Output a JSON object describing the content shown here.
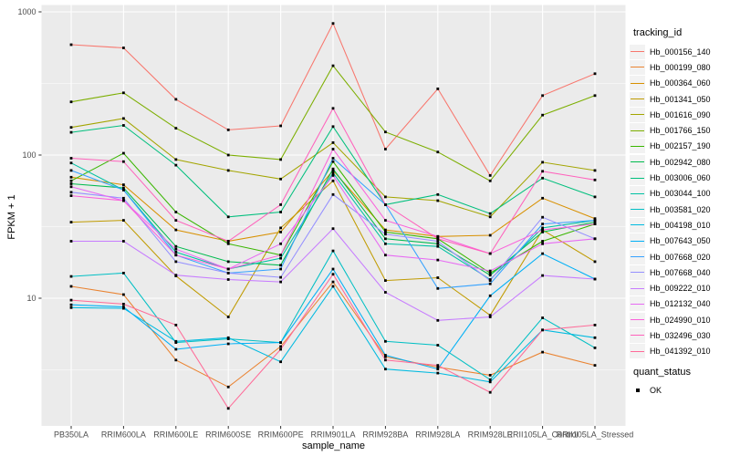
{
  "figure": {
    "background": "#FFFFFF",
    "panel_bg": "#EBEBEB",
    "grid_color": "#FFFFFF",
    "tick_color": "#333333",
    "tick_label_color": "#4D4D4D",
    "point_color": "#000000"
  },
  "axes": {
    "x_title": "sample_name",
    "y_title": "FPKM + 1",
    "y_tick_labels": [
      "1000",
      "100",
      "10"
    ],
    "y_tick_values": [
      1000,
      100,
      10
    ]
  },
  "legend": {
    "tracking_title": "tracking_id",
    "quant_title": "quant_status",
    "quant_items": [
      {
        "label": "OK"
      }
    ]
  },
  "chart_data": {
    "type": "line",
    "title": "",
    "xlabel": "sample_name",
    "ylabel": "FPKM + 1",
    "y_scale": "log10",
    "ylim": [
      1.28,
      1110
    ],
    "y_major_ticks": [
      10,
      100,
      1000
    ],
    "y_minor_ticks": [
      3.162,
      31.62,
      316.2
    ],
    "grid": true,
    "legend_position": "right",
    "point_shape": "filled-square",
    "categories": [
      "PB350LA",
      "RRIM600LA",
      "RRIM600LE",
      "RRIM600SE",
      "RRIM600PE",
      "RRIM901LA",
      "RRIM928BA",
      "RRIM928LA",
      "RRIM928LE",
      "RRII105LA_Control",
      "RRII105LA_Stressed"
    ],
    "series": [
      {
        "name": "Hb_000156_140",
        "color": "#F8766D",
        "values": [
          590,
          560,
          245,
          150,
          160,
          830,
          110,
          290,
          72,
          260,
          370
        ]
      },
      {
        "name": "Hb_000199_080",
        "color": "#EA8331",
        "values": [
          12.1,
          10.6,
          3.7,
          2.4,
          4.6,
          13,
          3.9,
          3.3,
          2.9,
          4.2,
          3.4
        ]
      },
      {
        "name": "Hb_000364_060",
        "color": "#D89000",
        "values": [
          70,
          62,
          30,
          25,
          29,
          78,
          30,
          27,
          27.5,
          50,
          36
        ]
      },
      {
        "name": "Hb_001341_050",
        "color": "#C09B00",
        "values": [
          34,
          35,
          14.3,
          7.4,
          31,
          66,
          13.3,
          13.9,
          7.6,
          30,
          18
        ]
      },
      {
        "name": "Hb_001616_090",
        "color": "#A3A500",
        "values": [
          156,
          180,
          93,
          78,
          68,
          122,
          51,
          48,
          37,
          89,
          78
        ]
      },
      {
        "name": "Hb_001766_150",
        "color": "#7CAE00",
        "values": [
          235,
          272,
          154,
          100,
          93,
          420,
          145,
          105,
          66,
          190,
          260
        ]
      },
      {
        "name": "Hb_002157_190",
        "color": "#39B600",
        "values": [
          66,
          103,
          40,
          24,
          20,
          90,
          29,
          26,
          15,
          25,
          33
        ]
      },
      {
        "name": "Hb_002942_080",
        "color": "#00BB4E",
        "values": [
          63,
          59,
          23,
          18,
          17,
          80,
          26,
          24,
          14.5,
          29,
          34
        ]
      },
      {
        "name": "Hb_003006_060",
        "color": "#00BF7D",
        "values": [
          144,
          161,
          85,
          37,
          40,
          158,
          45,
          53,
          39,
          69,
          51
        ]
      },
      {
        "name": "Hb_003044_100",
        "color": "#00C1A3",
        "values": [
          88,
          57,
          21,
          16,
          19,
          75,
          24,
          23,
          13.5,
          31,
          35
        ]
      },
      {
        "name": "Hb_003581_020",
        "color": "#00BFC4",
        "values": [
          14.2,
          15,
          4.9,
          5.2,
          4.9,
          21.4,
          5,
          4.7,
          2.7,
          7.3,
          4.5
        ]
      },
      {
        "name": "Hb_004198_010",
        "color": "#00BAE0",
        "values": [
          8.6,
          8.5,
          5,
          5.3,
          3.6,
          12.1,
          3.2,
          3,
          2.6,
          6,
          5.3
        ]
      },
      {
        "name": "Hb_007643_050",
        "color": "#00B0F6",
        "values": [
          9,
          8.7,
          4.4,
          4.8,
          4.9,
          16,
          4,
          3.2,
          10.4,
          20.5,
          13.6
        ]
      },
      {
        "name": "Hb_007668_020",
        "color": "#35A2FF",
        "values": [
          78,
          57,
          20,
          15,
          16,
          95,
          45,
          11.7,
          12.6,
          33,
          35
        ]
      },
      {
        "name": "Hb_007668_040",
        "color": "#9590FF",
        "values": [
          55,
          50,
          18,
          15,
          14,
          53,
          28,
          25,
          13.3,
          36.8,
          26
        ]
      },
      {
        "name": "Hb_009222_010",
        "color": "#C77CFF",
        "values": [
          25,
          25,
          14.5,
          13.5,
          13,
          30.6,
          11,
          7,
          7.4,
          14.4,
          13.6
        ]
      },
      {
        "name": "Hb_012132_040",
        "color": "#E76BF3",
        "values": [
          60,
          48,
          22,
          16,
          24,
          72,
          20,
          18.5,
          15.5,
          24,
          26
        ]
      },
      {
        "name": "Hb_024990_010",
        "color": "#FA62DB",
        "values": [
          52,
          48,
          20,
          16,
          20,
          110,
          35,
          27,
          20.5,
          30,
          33
        ]
      },
      {
        "name": "Hb_032496_030",
        "color": "#FF62BC",
        "values": [
          95,
          90,
          35,
          25,
          45,
          212,
          45,
          26,
          20.5,
          77,
          67
        ]
      },
      {
        "name": "Hb_041392_010",
        "color": "#FF6A98",
        "values": [
          9.7,
          9.1,
          6.5,
          1.7,
          4.4,
          14.7,
          3.7,
          3.4,
          2.2,
          6,
          6.5
        ]
      }
    ]
  }
}
